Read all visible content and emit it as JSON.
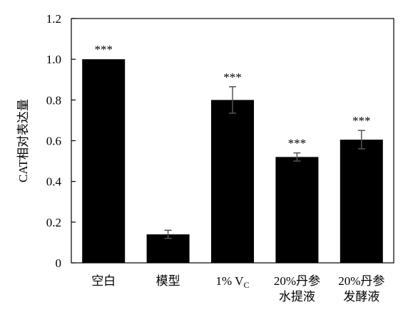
{
  "chart_data": {
    "type": "bar",
    "categories": [
      [
        "空白"
      ],
      [
        "模型"
      ],
      [
        "1% V",
        "C"
      ],
      [
        "20%丹参",
        "水提液"
      ],
      [
        "20%丹参",
        "发酵液"
      ]
    ],
    "values": [
      1.0,
      0.14,
      0.8,
      0.52,
      0.605
    ],
    "errors": [
      0.0,
      0.02,
      0.065,
      0.02,
      0.045
    ],
    "significance": [
      "***",
      "",
      "***",
      "***",
      "***"
    ],
    "ylabel": "CAT相对表达量",
    "xlabel": "",
    "ylim": [
      0,
      1.2
    ],
    "yticks": [
      "0",
      "0.2",
      "0.4",
      "0.6",
      "0.8",
      "1.0",
      "1.2"
    ],
    "bar_color": "#000000",
    "grid": false
  }
}
